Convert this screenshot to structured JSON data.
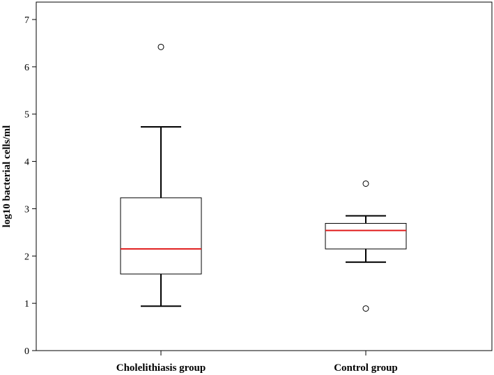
{
  "chart_data": {
    "type": "boxplot",
    "title": "",
    "xlabel": "",
    "ylabel": "log10 bacterial cells/ml",
    "ylim": [
      0,
      7
    ],
    "yticks": [
      "0",
      "1",
      "2",
      "3",
      "4",
      "5",
      "6",
      "7"
    ],
    "grid": false,
    "median_color": "#e01b1b",
    "box_color": "#000000",
    "groups": [
      {
        "name": "Cholelithiasis group",
        "whisker_low": 0.94,
        "q1": 1.62,
        "median": 2.15,
        "q3": 3.23,
        "whisker_high": 4.73,
        "outliers": [
          6.42
        ]
      },
      {
        "name": "Control group",
        "whisker_low": 1.87,
        "q1": 2.15,
        "median": 2.54,
        "q3": 2.69,
        "whisker_high": 2.85,
        "outliers": [
          3.53,
          0.89
        ]
      }
    ]
  }
}
